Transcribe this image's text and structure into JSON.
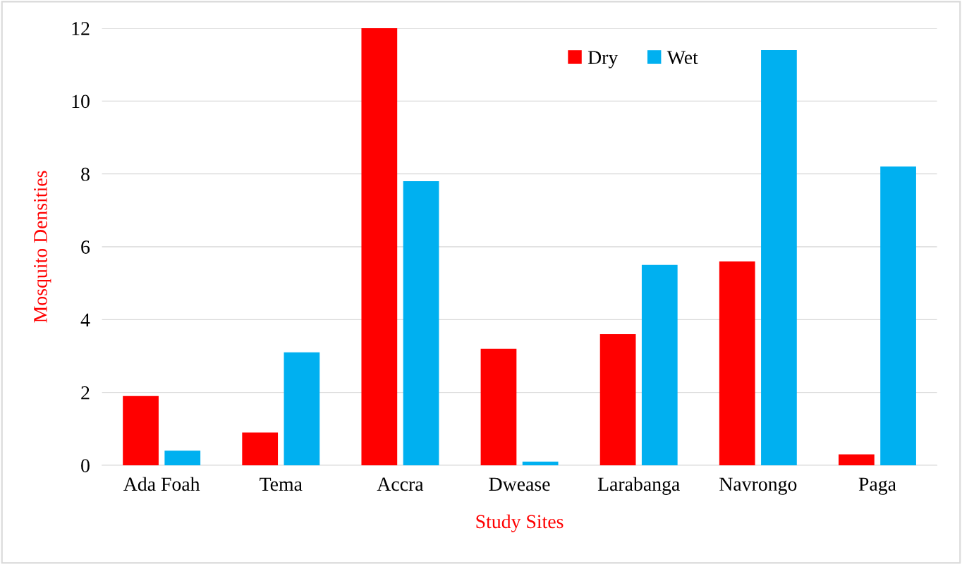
{
  "chart_data": {
    "type": "bar",
    "xlabel": "Study Sites",
    "ylabel": "Mosquito Densities",
    "categories": [
      "Ada Foah",
      "Tema",
      "Accra",
      "Dwease",
      "Larabanga",
      "Navrongo",
      "Paga"
    ],
    "series": [
      {
        "name": "Dry",
        "color": "#ff0000",
        "values": [
          1.9,
          0.9,
          12,
          3.2,
          3.6,
          5.6,
          0.3
        ]
      },
      {
        "name": "Wet",
        "color": "#00b0f0",
        "values": [
          0.4,
          3.1,
          7.8,
          0.1,
          5.5,
          11.4,
          8.2
        ]
      }
    ],
    "ylim": [
      0,
      12
    ],
    "yticks": [
      0,
      2,
      4,
      6,
      8,
      10,
      12
    ],
    "grid": "y",
    "legend": "top right"
  }
}
